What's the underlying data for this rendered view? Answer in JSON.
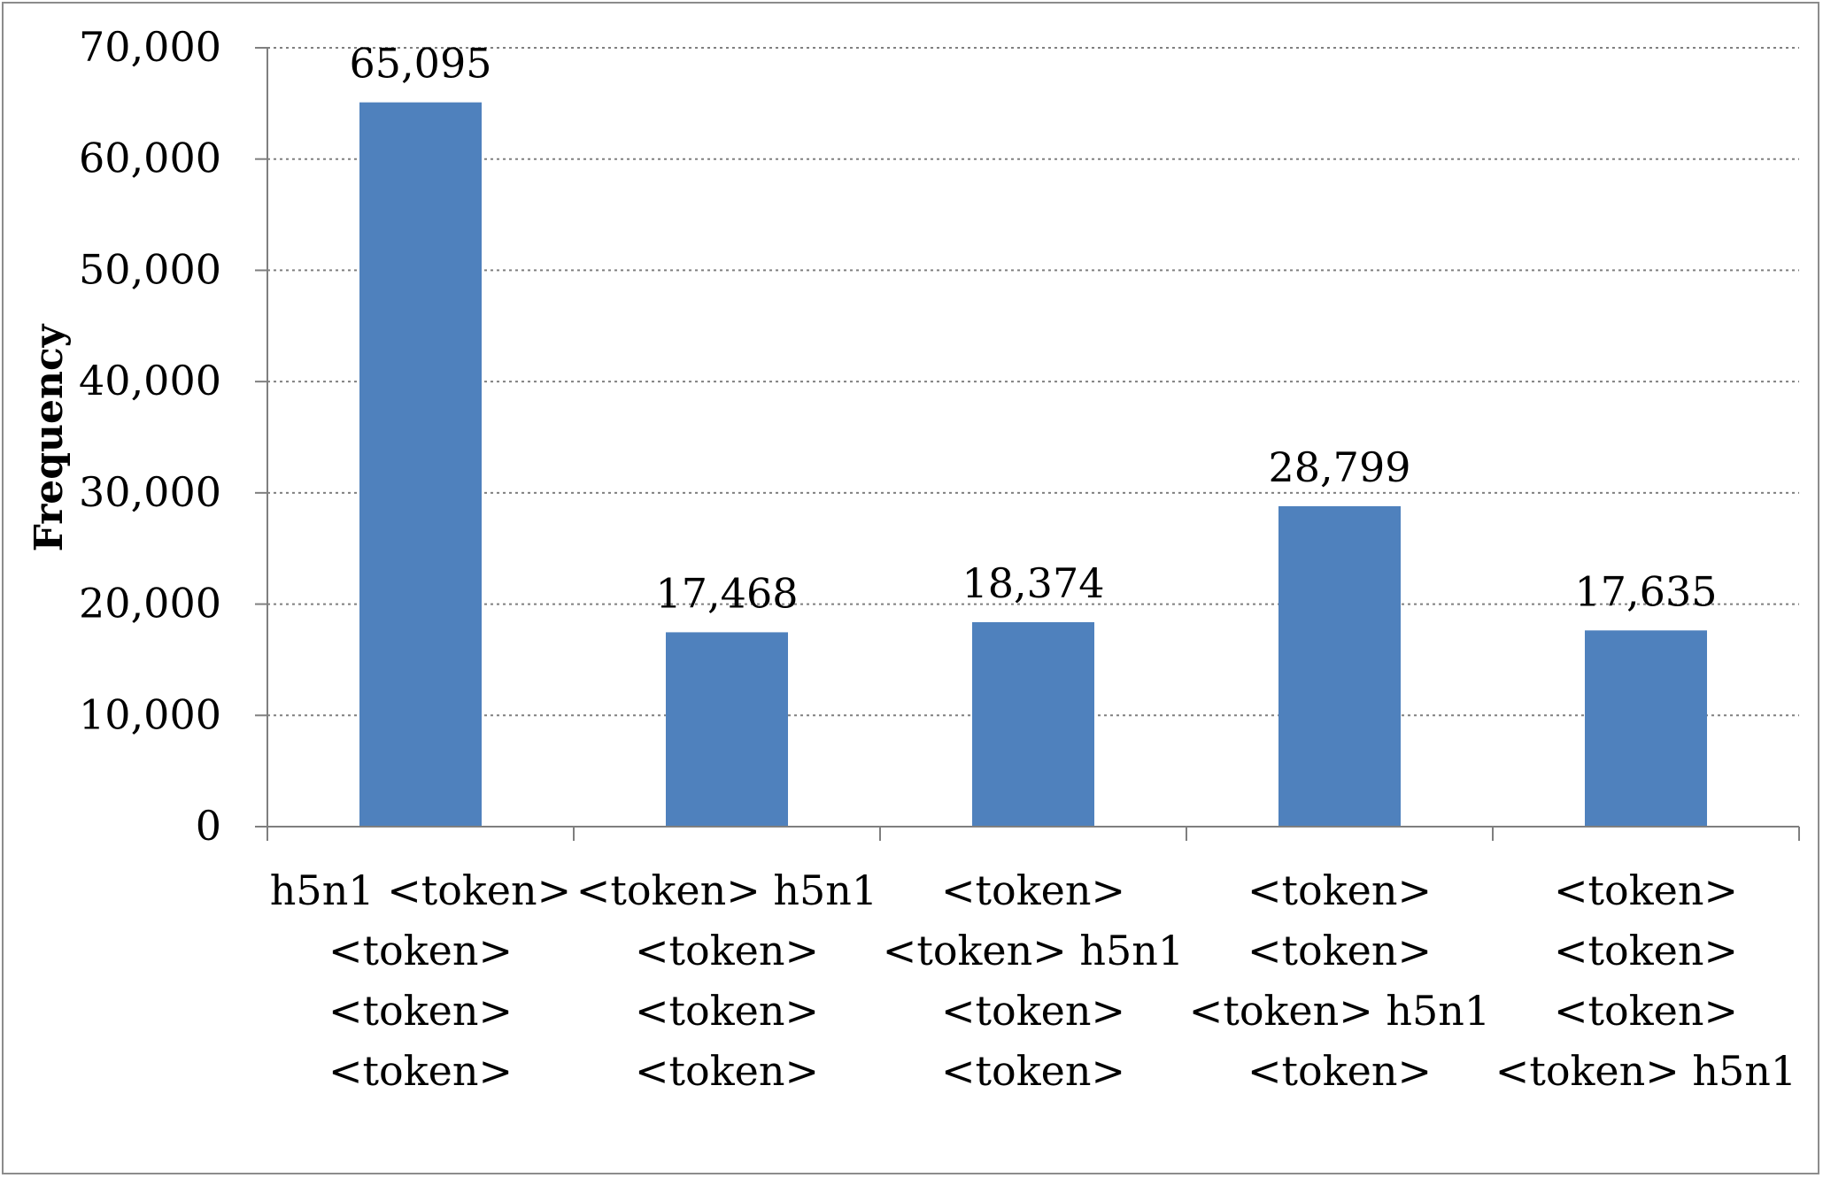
{
  "chart_data": {
    "type": "bar",
    "categories": [
      [
        "h5n1 <token>",
        "<token>",
        "<token>",
        "<token>"
      ],
      [
        "<token> h5n1",
        "<token>",
        "<token>",
        "<token>"
      ],
      [
        "<token>",
        "<token> h5n1",
        "<token>",
        "<token>"
      ],
      [
        "<token>",
        "<token>",
        "<token> h5n1",
        "<token>"
      ],
      [
        "<token>",
        "<token>",
        "<token>",
        "<token> h5n1"
      ]
    ],
    "values": [
      65095,
      17468,
      18374,
      28799,
      17635
    ],
    "data_labels": [
      "65,095",
      "17,468",
      "18,374",
      "28,799",
      "17,635"
    ],
    "title": "",
    "xlabel": "",
    "ylabel": "Frequency",
    "ylim": [
      0,
      70000
    ],
    "yticks": [
      0,
      10000,
      20000,
      30000,
      40000,
      50000,
      60000,
      70000
    ],
    "ytick_labels": [
      "0",
      "10,000",
      "20,000",
      "30,000",
      "40,000",
      "50,000",
      "60,000",
      "70,000"
    ],
    "grid": "horizontal dotted",
    "bar_color": "#4f81bd",
    "grid_color": "#808080",
    "axis_color": "#7f7f7f"
  }
}
